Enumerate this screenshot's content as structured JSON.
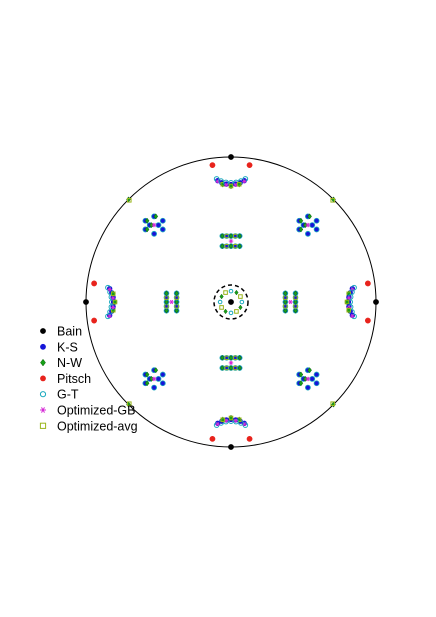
{
  "chart_data": {
    "type": "scatter",
    "subtype": "pole-figure",
    "title": "",
    "xlabel": "",
    "ylabel": "",
    "xlim": [
      -1,
      1
    ],
    "ylim": [
      -1,
      1
    ],
    "grid": false,
    "legend_position": "left",
    "series": [
      {
        "name": "Bain",
        "marker": "filled-circle",
        "color": "#000000",
        "points": [
          [
            0,
            1
          ],
          [
            0,
            -1
          ],
          [
            1,
            0
          ],
          [
            -1,
            0
          ],
          [
            0,
            0
          ]
        ]
      },
      {
        "name": "K-S",
        "marker": "filled-circle",
        "color": "#1515d8",
        "points": []
      },
      {
        "name": "N-W",
        "marker": "diamond",
        "color": "#17a017",
        "points": []
      },
      {
        "name": "Pitsch",
        "marker": "filled-circle",
        "color": "#e8231c",
        "points": [
          [
            0.128,
            0.944
          ],
          [
            -0.128,
            0.944
          ],
          [
            0.128,
            -0.944
          ],
          [
            -0.128,
            -0.944
          ],
          [
            0.944,
            0.128
          ],
          [
            0.944,
            -0.128
          ],
          [
            -0.944,
            0.128
          ],
          [
            -0.944,
            -0.128
          ]
        ]
      },
      {
        "name": "G-T",
        "marker": "open-circle",
        "color": "#18a9bd",
        "points": []
      },
      {
        "name": "Optimized-GB",
        "marker": "star",
        "color": "#d629d6",
        "points": []
      },
      {
        "name": "Optimized-avg",
        "marker": "open-square",
        "color": "#9ab51c",
        "points": []
      }
    ]
  }
}
